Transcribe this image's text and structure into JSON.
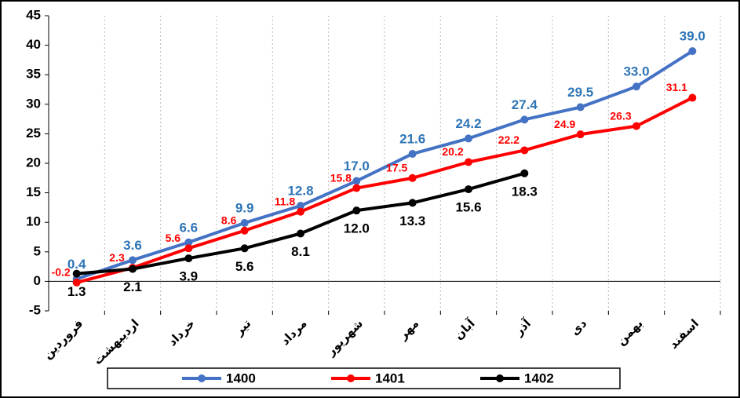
{
  "chart_data": {
    "type": "line",
    "categories": [
      "فروردین",
      "اردیبهشت",
      "خرداد",
      "تیر",
      "مرداد",
      "شهریور",
      "مهر",
      "آبان",
      "آذر",
      "دی",
      "بهمن",
      "اسفند"
    ],
    "series": [
      {
        "name": "1400",
        "color": "#4472c4",
        "values": [
          0.4,
          3.6,
          6.6,
          9.9,
          12.8,
          17.0,
          21.6,
          24.2,
          27.4,
          29.5,
          33.0,
          39.0
        ],
        "value_labels": [
          "0.4",
          "3.6",
          "6.6",
          "9.9",
          "12.8",
          "17.0",
          "21.6",
          "24.2",
          "27.4",
          "29.5",
          "33.0",
          "39.0"
        ]
      },
      {
        "name": "1401",
        "color": "#ff0000",
        "values": [
          -0.2,
          2.3,
          5.6,
          8.6,
          11.8,
          15.8,
          17.5,
          20.2,
          22.2,
          24.9,
          26.3,
          31.1
        ],
        "value_labels": [
          "-0.2",
          "2.3",
          "5.6",
          "8.6",
          "11.8",
          "15.8",
          "17.5",
          "20.2",
          "22.2",
          "24.9",
          "26.3",
          "31.1"
        ]
      },
      {
        "name": "1402",
        "color": "#000000",
        "values": [
          1.3,
          2.1,
          3.9,
          5.6,
          8.1,
          12.0,
          13.3,
          15.6,
          18.3,
          null,
          null,
          null
        ],
        "value_labels": [
          "1.3",
          "2.1",
          "3.9",
          "5.6",
          "8.1",
          "12.0",
          "13.3",
          "15.6",
          "18.3",
          null,
          null,
          null
        ]
      }
    ],
    "ylim": [
      -5,
      45
    ],
    "yticks": [
      -5,
      0,
      5,
      10,
      15,
      20,
      25,
      30,
      35,
      40,
      45
    ],
    "legend": "bottom"
  }
}
